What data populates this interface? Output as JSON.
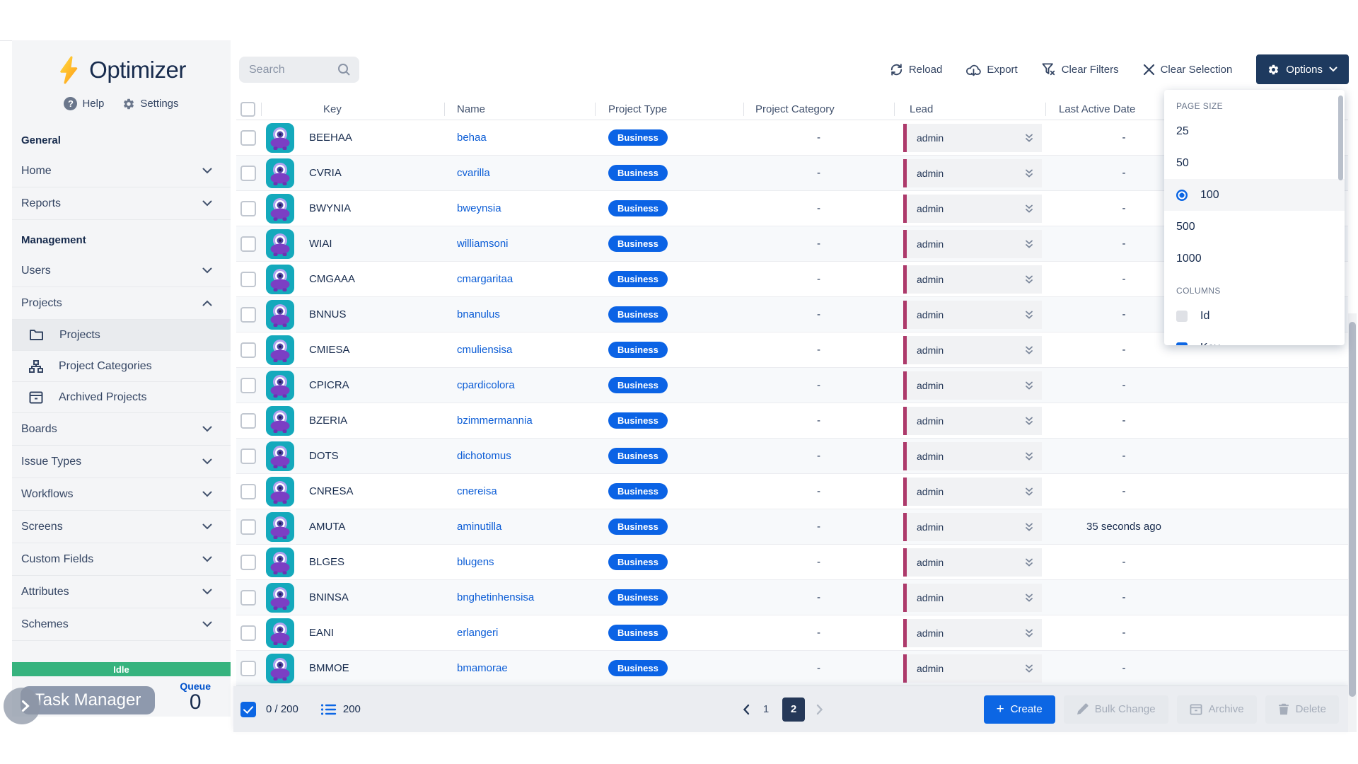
{
  "brand": {
    "name": "Optimizer"
  },
  "colors": {
    "accent_blue": "#0c66e4",
    "navy": "#172b4d",
    "sidebar_bg": "#f4f5f7",
    "idle_green": "#36b37e",
    "lead_stripe": "#ad3a6b",
    "badge_blue": "#0b63e5",
    "options_button_bg": "#1e3a5f"
  },
  "sidebar": {
    "help_label": "Help",
    "settings_label": "Settings",
    "entries": [
      {
        "is_header": true,
        "label": "General"
      },
      {
        "is_row": true,
        "label": "Home",
        "chev_down": true
      },
      {
        "is_row": true,
        "label": "Reports",
        "chev_down": true
      },
      {
        "is_header": true,
        "label": "Management"
      },
      {
        "is_row": true,
        "label": "Users",
        "chev_down": true
      },
      {
        "is_row": true,
        "label": "Projects",
        "chev_up": true
      },
      {
        "is_row": true,
        "is_sub": true,
        "selected": true,
        "label": "Projects",
        "icon_folder": true
      },
      {
        "is_row": true,
        "is_sub": true,
        "label": "Project Categories",
        "icon_tree": true
      },
      {
        "is_row": true,
        "is_sub": true,
        "label": "Archived Projects",
        "icon_archive": true
      },
      {
        "is_row": true,
        "label": "Boards",
        "chev_down": true
      },
      {
        "is_row": true,
        "label": "Issue Types",
        "chev_down": true
      },
      {
        "is_row": true,
        "label": "Workflows",
        "chev_down": true
      },
      {
        "is_row": true,
        "label": "Screens",
        "chev_down": true
      },
      {
        "is_row": true,
        "label": "Custom Fields",
        "chev_down": true
      },
      {
        "is_row": true,
        "label": "Attributes",
        "chev_down": true
      },
      {
        "is_row": true,
        "label": "Schemes",
        "chev_down": true
      }
    ],
    "status": "Idle",
    "task_manager_label": "Task Manager",
    "queue_label": "Queue",
    "queue_count": "0"
  },
  "toolbar": {
    "search_placeholder": "Search",
    "reload_label": "Reload",
    "export_label": "Export",
    "clear_filters_label": "Clear Filters",
    "clear_selection_label": "Clear Selection",
    "options_label": "Options"
  },
  "options_menu": {
    "page_size_label": "PAGE SIZE",
    "page_sizes": [
      {
        "label": "25"
      },
      {
        "label": "50"
      },
      {
        "label": "100",
        "selected": true
      },
      {
        "label": "500"
      },
      {
        "label": "1000"
      }
    ],
    "columns_label": "COLUMNS",
    "columns": [
      {
        "label": "Id"
      },
      {
        "label": "Key",
        "checked": true
      }
    ]
  },
  "table": {
    "headers": {
      "key": "Key",
      "name": "Name",
      "project_type": "Project Type",
      "project_category": "Project Category",
      "lead": "Lead",
      "last_active": "Last Active Date"
    },
    "rows": [
      {
        "key": "BEEHAA",
        "name": "behaa",
        "type": "Business",
        "category": "-",
        "lead": "admin",
        "last_active": "-"
      },
      {
        "key": "CVRIA",
        "name": "cvarilla",
        "type": "Business",
        "category": "-",
        "lead": "admin",
        "last_active": "-"
      },
      {
        "key": "BWYNIA",
        "name": "bweynsia",
        "type": "Business",
        "category": "-",
        "lead": "admin",
        "last_active": "-"
      },
      {
        "key": "WIAI",
        "name": "williamsoni",
        "type": "Business",
        "category": "-",
        "lead": "admin",
        "last_active": "-"
      },
      {
        "key": "CMGAAA",
        "name": "cmargaritaa",
        "type": "Business",
        "category": "-",
        "lead": "admin",
        "last_active": "-"
      },
      {
        "key": "BNNUS",
        "name": "bnanulus",
        "type": "Business",
        "category": "-",
        "lead": "admin",
        "last_active": "-"
      },
      {
        "key": "CMIESA",
        "name": "cmuliensisa",
        "type": "Business",
        "category": "-",
        "lead": "admin",
        "last_active": "-"
      },
      {
        "key": "CPICRA",
        "name": "cpardicolora",
        "type": "Business",
        "category": "-",
        "lead": "admin",
        "last_active": "-"
      },
      {
        "key": "BZERIA",
        "name": "bzimmermannia",
        "type": "Business",
        "category": "-",
        "lead": "admin",
        "last_active": "-"
      },
      {
        "key": "DOTS",
        "name": "dichotomus",
        "type": "Business",
        "category": "-",
        "lead": "admin",
        "last_active": "-"
      },
      {
        "key": "CNRESA",
        "name": "cnereisa",
        "type": "Business",
        "category": "-",
        "lead": "admin",
        "last_active": "-"
      },
      {
        "key": "AMUTA",
        "name": "aminutilla",
        "type": "Business",
        "category": "-",
        "lead": "admin",
        "last_active": "35 seconds ago"
      },
      {
        "key": "BLGES",
        "name": "blugens",
        "type": "Business",
        "category": "-",
        "lead": "admin",
        "last_active": "-"
      },
      {
        "key": "BNINSA",
        "name": "bnghetinhensisa",
        "type": "Business",
        "category": "-",
        "lead": "admin",
        "last_active": "-"
      },
      {
        "key": "EANI",
        "name": "erlangeri",
        "type": "Business",
        "category": "-",
        "lead": "admin",
        "last_active": "-"
      },
      {
        "key": "BMMOE",
        "name": "bmamorae",
        "type": "Business",
        "category": "-",
        "lead": "admin",
        "last_active": "-"
      }
    ]
  },
  "footer": {
    "selection_count": "0 / 200",
    "total_count": "200",
    "pages": [
      {
        "label": "1"
      },
      {
        "label": "2",
        "current": true
      }
    ],
    "create_label": "Create",
    "bulk_change_label": "Bulk Change",
    "archive_label": "Archive",
    "delete_label": "Delete"
  }
}
